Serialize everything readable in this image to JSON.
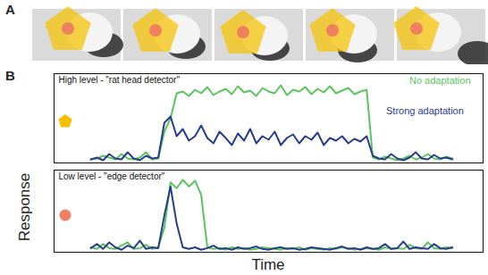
{
  "figure": {
    "panel_labels": [
      "A",
      "B"
    ],
    "xlabel": "Time",
    "ylabel": "Response"
  },
  "chart_data": [
    {
      "type": "line",
      "title": "High level - \"rat head detector\"",
      "tick_labels": false,
      "xlim": [
        -6,
        64
      ],
      "ylim": [
        0,
        1
      ],
      "x": [
        0,
        1,
        2,
        3,
        4,
        5,
        6,
        7,
        8,
        9,
        10,
        11,
        12,
        13,
        14,
        15,
        16,
        17,
        18,
        19,
        20,
        21,
        22,
        23,
        24,
        25,
        26,
        27,
        28,
        29,
        30,
        31,
        32,
        33,
        34,
        35,
        36,
        37,
        38,
        39,
        40,
        41,
        42,
        43,
        44,
        45,
        46,
        47,
        48,
        49,
        50,
        51,
        52,
        53,
        54,
        55,
        56,
        57,
        58,
        59
      ],
      "series": [
        {
          "name": "No adaptation",
          "color": "#5cc45c",
          "values": [
            0.04,
            0.05,
            0.08,
            0.06,
            0.04,
            0.1,
            0.05,
            0.04,
            0.06,
            0.12,
            0.04,
            0.05,
            0.35,
            0.5,
            0.78,
            0.8,
            0.75,
            0.82,
            0.78,
            0.85,
            0.76,
            0.8,
            0.83,
            0.77,
            0.86,
            0.79,
            0.81,
            0.75,
            0.84,
            0.8,
            0.78,
            0.87,
            0.76,
            0.82,
            0.8,
            0.85,
            0.77,
            0.83,
            0.79,
            0.86,
            0.78,
            0.81,
            0.84,
            0.77,
            0.8,
            0.82,
            0.06,
            0.04,
            0.07,
            0.05,
            0.03,
            0.05,
            0.08,
            0.04,
            0.06,
            0.1,
            0.05,
            0.04,
            0.07,
            0.05
          ]
        },
        {
          "name": "Strong adaptation",
          "color": "#283c8c",
          "values": [
            0.04,
            0.06,
            0.03,
            0.1,
            0.05,
            0.04,
            0.12,
            0.05,
            0.03,
            0.08,
            0.05,
            0.06,
            0.45,
            0.52,
            0.3,
            0.38,
            0.25,
            0.3,
            0.42,
            0.28,
            0.22,
            0.35,
            0.28,
            0.2,
            0.33,
            0.25,
            0.38,
            0.22,
            0.3,
            0.26,
            0.35,
            0.2,
            0.28,
            0.32,
            0.22,
            0.3,
            0.26,
            0.34,
            0.2,
            0.28,
            0.25,
            0.3,
            0.22,
            0.27,
            0.24,
            0.3,
            0.08,
            0.05,
            0.04,
            0.1,
            0.05,
            0.03,
            0.06,
            0.12,
            0.05,
            0.04,
            0.09,
            0.05,
            0.06,
            0.04
          ]
        }
      ]
    },
    {
      "type": "line",
      "title": "Low level - \"edge detector\"",
      "tick_labels": false,
      "xlim": [
        -6,
        64
      ],
      "ylim": [
        0,
        1
      ],
      "x": [
        0,
        1,
        2,
        3,
        4,
        5,
        6,
        7,
        8,
        9,
        10,
        11,
        12,
        13,
        14,
        15,
        16,
        17,
        18,
        19,
        20,
        21,
        22,
        23,
        24,
        25,
        26,
        27,
        28,
        29,
        30,
        31,
        32,
        33,
        34,
        35,
        36,
        37,
        38,
        39,
        40,
        41,
        42,
        43,
        44,
        45,
        46,
        47,
        48,
        49,
        50,
        51,
        52,
        53,
        54,
        55,
        56,
        57,
        58,
        59
      ],
      "series": [
        {
          "color": "#5cc45c",
          "values": [
            0.06,
            0.04,
            0.1,
            0.05,
            0.04,
            0.08,
            0.12,
            0.04,
            0.05,
            0.09,
            0.04,
            0.06,
            0.3,
            0.85,
            0.78,
            0.88,
            0.8,
            0.87,
            0.7,
            0.06,
            0.04,
            0.05,
            0.03,
            0.06,
            0.04,
            0.05,
            0.03,
            0.04,
            0.06,
            0.05,
            0.04,
            0.03,
            0.05,
            0.04,
            0.06,
            0.03,
            0.05,
            0.04,
            0.03,
            0.05,
            0.04,
            0.06,
            0.05,
            0.03,
            0.04,
            0.05,
            0.04,
            0.03,
            0.06,
            0.04,
            0.05,
            0.04,
            0.09,
            0.05,
            0.04,
            0.12,
            0.05,
            0.04,
            0.06,
            0.05
          ]
        },
        {
          "color": "#283c8c",
          "values": [
            0.05,
            0.1,
            0.04,
            0.12,
            0.06,
            0.03,
            0.08,
            0.05,
            0.14,
            0.04,
            0.06,
            0.05,
            0.45,
            0.8,
            0.35,
            0.06,
            0.04,
            0.06,
            0.03,
            0.05,
            0.08,
            0.04,
            0.05,
            0.03,
            0.06,
            0.04,
            0.05,
            0.07,
            0.04,
            0.03,
            0.05,
            0.06,
            0.04,
            0.05,
            0.03,
            0.04,
            0.06,
            0.05,
            0.04,
            0.03,
            0.05,
            0.07,
            0.04,
            0.05,
            0.03,
            0.06,
            0.04,
            0.05,
            0.1,
            0.04,
            0.05,
            0.13,
            0.04,
            0.06,
            0.05,
            0.04,
            0.1,
            0.05,
            0.04,
            0.06
          ]
        }
      ]
    }
  ]
}
